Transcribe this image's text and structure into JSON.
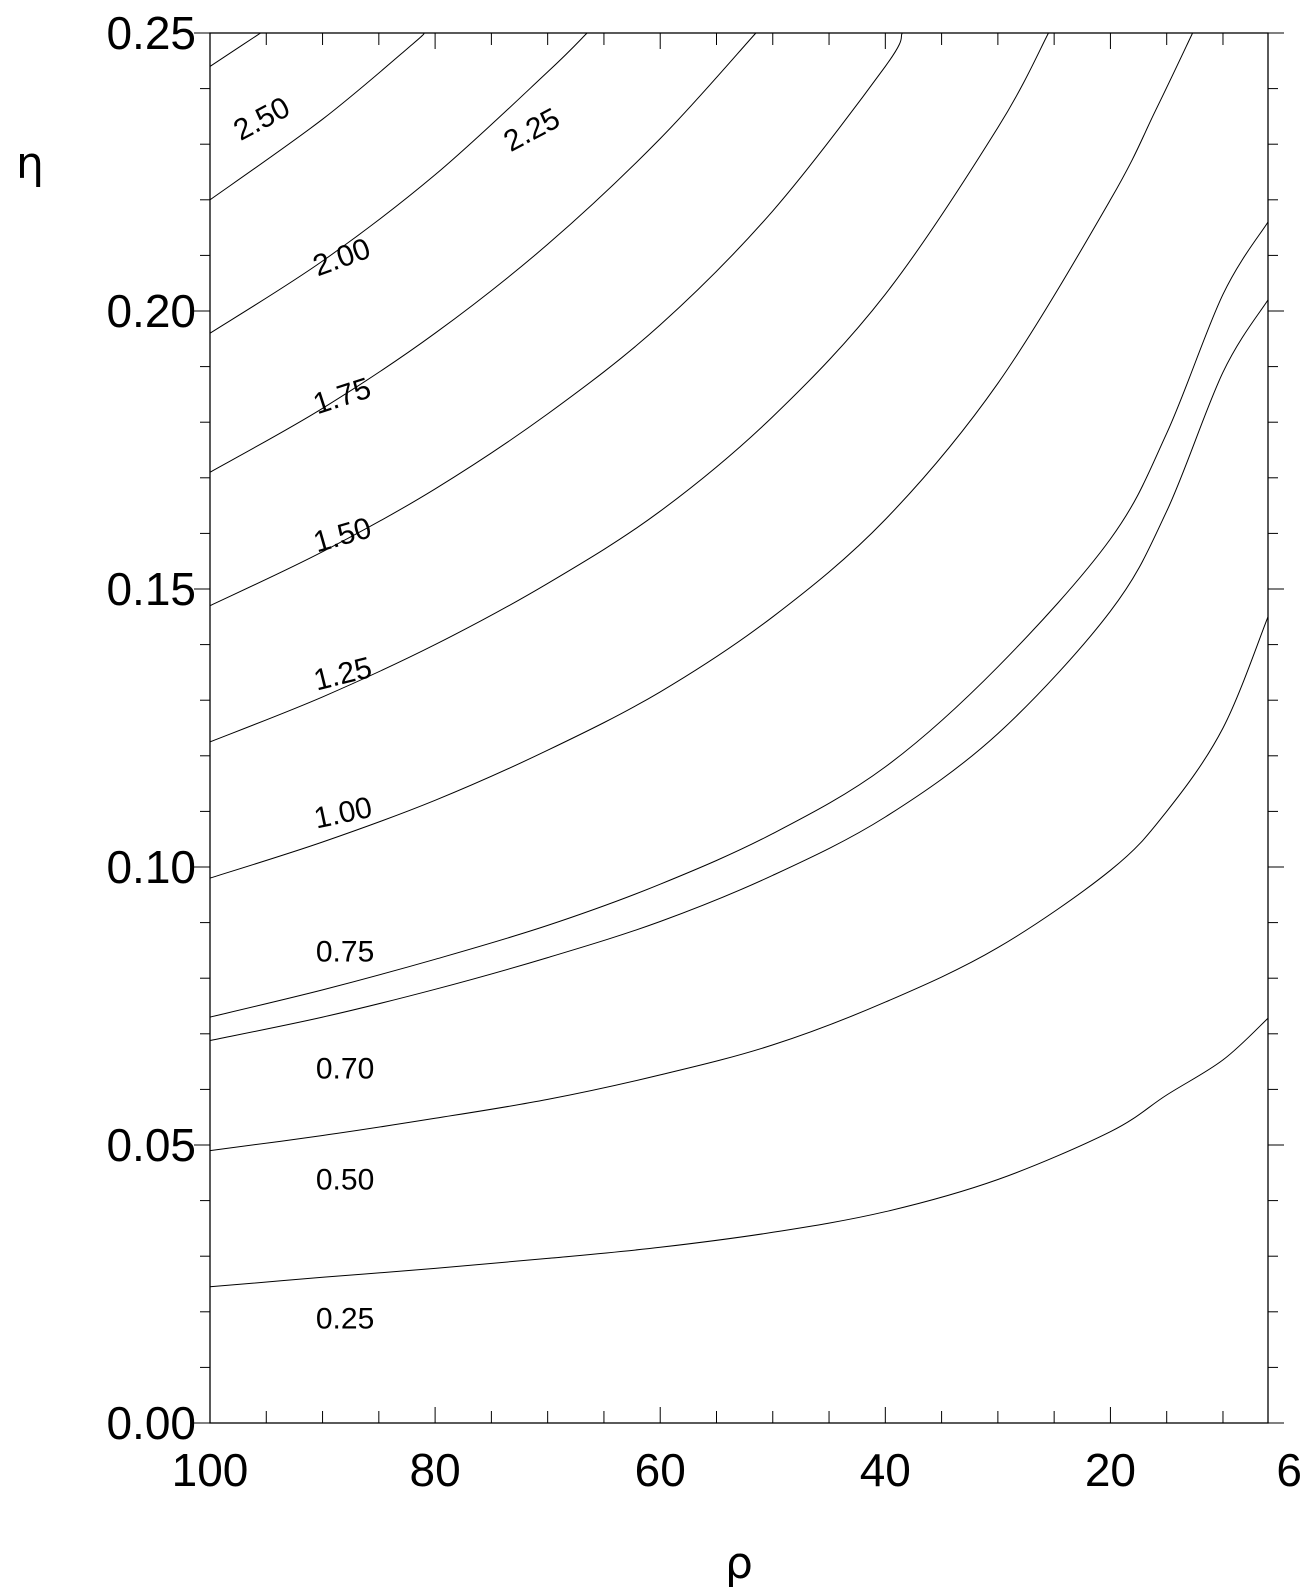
{
  "chart_data": {
    "type": "line",
    "title": "",
    "xlabel": "ρ",
    "ylabel": "η",
    "xlim": [
      100,
      6
    ],
    "ylim": [
      0.0,
      0.25
    ],
    "x_ticks": [
      {
        "value": 100,
        "label": "100"
      },
      {
        "value": 80,
        "label": "80"
      },
      {
        "value": 60,
        "label": "60"
      },
      {
        "value": 40,
        "label": "40"
      },
      {
        "value": 20,
        "label": "20"
      },
      {
        "value": 6,
        "label": "6"
      }
    ],
    "y_ticks": [
      {
        "value": 0.0,
        "label": "0.00"
      },
      {
        "value": 0.05,
        "label": "0.05"
      },
      {
        "value": 0.1,
        "label": "0.10"
      },
      {
        "value": 0.15,
        "label": "0.15"
      },
      {
        "value": 0.2,
        "label": "0.20"
      },
      {
        "value": 0.25,
        "label": "0.25"
      }
    ],
    "grid": false,
    "series": [
      {
        "label": "0.25",
        "label_at": [
          88,
          0.017
        ],
        "label_angle": 0,
        "points": [
          [
            100,
            0.0245
          ],
          [
            90,
            0.0262
          ],
          [
            80,
            0.0278
          ],
          [
            70,
            0.0296
          ],
          [
            60,
            0.0316
          ],
          [
            50,
            0.0343
          ],
          [
            40,
            0.038
          ],
          [
            30,
            0.0438
          ],
          [
            20,
            0.0524
          ],
          [
            15,
            0.059
          ],
          [
            10,
            0.0653
          ],
          [
            6,
            0.0728
          ]
        ]
      },
      {
        "label": "0.50",
        "label_at": [
          88,
          0.042
        ],
        "label_angle": 0,
        "points": [
          [
            100,
            0.049
          ],
          [
            90,
            0.0517
          ],
          [
            80,
            0.0548
          ],
          [
            70,
            0.0582
          ],
          [
            60,
            0.0626
          ],
          [
            50,
            0.068
          ],
          [
            40,
            0.0757
          ],
          [
            30,
            0.0855
          ],
          [
            20,
            0.0994
          ],
          [
            15,
            0.11
          ],
          [
            10,
            0.125
          ],
          [
            6,
            0.145
          ]
        ]
      },
      {
        "label": "0.70",
        "label_at": [
          88,
          0.062
        ],
        "label_angle": 0,
        "points": [
          [
            100,
            0.0688
          ],
          [
            90,
            0.073
          ],
          [
            80,
            0.078
          ],
          [
            70,
            0.0837
          ],
          [
            60,
            0.0902
          ],
          [
            50,
            0.0985
          ],
          [
            40,
            0.109
          ],
          [
            30,
            0.124
          ],
          [
            20,
            0.146
          ],
          [
            15,
            0.164
          ],
          [
            10,
            0.189
          ],
          [
            6,
            0.202
          ]
        ]
      },
      {
        "label": "0.75",
        "label_at": [
          88,
          0.083
        ],
        "label_angle": 0,
        "points": [
          [
            100,
            0.073
          ],
          [
            90,
            0.0779
          ],
          [
            80,
            0.0834
          ],
          [
            70,
            0.0895
          ],
          [
            60,
            0.0969
          ],
          [
            50,
            0.106
          ],
          [
            40,
            0.118
          ],
          [
            30,
            0.136
          ],
          [
            20,
            0.159
          ],
          [
            15,
            0.178
          ],
          [
            10,
            0.203
          ],
          [
            6,
            0.216
          ]
        ]
      },
      {
        "label": "1.00",
        "label_at": [
          88,
          0.108
        ],
        "label_angle": -12,
        "points": [
          [
            100,
            0.098
          ],
          [
            90,
            0.1045
          ],
          [
            80,
            0.112
          ],
          [
            70,
            0.121
          ],
          [
            60,
            0.1315
          ],
          [
            50,
            0.145
          ],
          [
            40,
            0.1625
          ],
          [
            30,
            0.187
          ],
          [
            20,
            0.22
          ],
          [
            16,
            0.236
          ],
          [
            12.7,
            0.25
          ]
        ]
      },
      {
        "label": "1.25",
        "label_at": [
          88,
          0.133
        ],
        "label_angle": -14,
        "points": [
          [
            100,
            0.1225
          ],
          [
            90,
            0.1306
          ],
          [
            80,
            0.14
          ],
          [
            70,
            0.151
          ],
          [
            60,
            0.164
          ],
          [
            50,
            0.181
          ],
          [
            40,
            0.203
          ],
          [
            30,
            0.233
          ],
          [
            25.5,
            0.25
          ]
        ]
      },
      {
        "label": "1.50",
        "label_at": [
          88,
          0.158
        ],
        "label_angle": -16,
        "points": [
          [
            100,
            0.147
          ],
          [
            90,
            0.1567
          ],
          [
            80,
            0.168
          ],
          [
            70,
            0.1815
          ],
          [
            60,
            0.1975
          ],
          [
            50,
            0.218
          ],
          [
            40,
            0.244
          ],
          [
            38.5,
            0.25
          ]
        ]
      },
      {
        "label": "1.75",
        "label_at": [
          88,
          0.183
        ],
        "label_angle": -18,
        "points": [
          [
            100,
            0.171
          ],
          [
            90,
            0.1825
          ],
          [
            80,
            0.196
          ],
          [
            70,
            0.212
          ],
          [
            60,
            0.231
          ],
          [
            51.5,
            0.25
          ]
        ]
      },
      {
        "label": "2.00",
        "label_at": [
          88,
          0.208
        ],
        "label_angle": -20,
        "points": [
          [
            100,
            0.196
          ],
          [
            90,
            0.209
          ],
          [
            80,
            0.2245
          ],
          [
            70,
            0.243
          ],
          [
            66.5,
            0.25
          ]
        ]
      },
      {
        "label": "2.25",
        "label_at": [
          71,
          0.231
        ],
        "label_angle": -28,
        "points": [
          [
            100,
            0.22
          ],
          [
            90,
            0.2345
          ],
          [
            82,
            0.248
          ],
          [
            81,
            0.25
          ]
        ]
      },
      {
        "label": "2.50",
        "label_at": [
          95,
          0.233
        ],
        "label_angle": -28,
        "points": [
          [
            100,
            0.244
          ],
          [
            97,
            0.248
          ],
          [
            95.5,
            0.25
          ]
        ]
      }
    ]
  }
}
